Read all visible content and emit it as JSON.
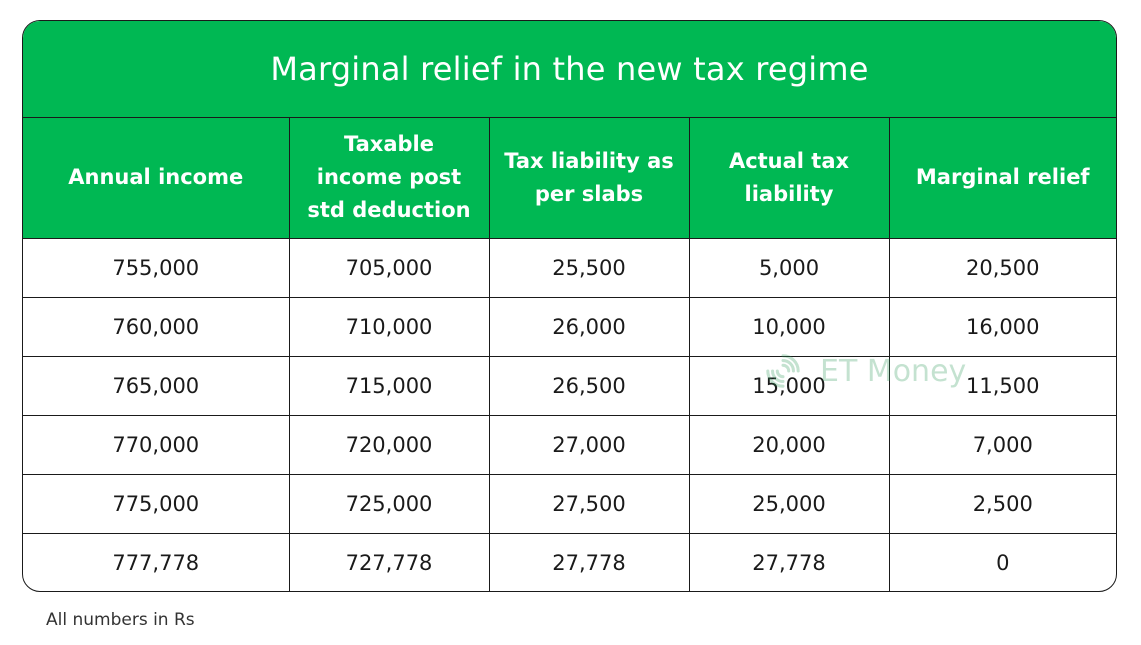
{
  "title": "Marginal relief in the new tax regime",
  "columns": [
    "Annual income",
    "Taxable income post std deduction",
    "Tax liability as per slabs",
    "Actual tax liability",
    "Marginal relief"
  ],
  "rows": [
    [
      "755,000",
      "705,000",
      "25,500",
      "5,000",
      "20,500"
    ],
    [
      "760,000",
      "710,000",
      "26,000",
      "10,000",
      "16,000"
    ],
    [
      "765,000",
      "715,000",
      "26,500",
      "15,000",
      "11,500"
    ],
    [
      "770,000",
      "720,000",
      "27,000",
      "20,000",
      "7,000"
    ],
    [
      "775,000",
      "725,000",
      "27,500",
      "25,000",
      "2,500"
    ],
    [
      "777,778",
      "727,778",
      "27,778",
      "27,778",
      "0"
    ]
  ],
  "watermark": {
    "text": "ET Money",
    "icon": "et-money-logo-icon"
  },
  "footnote": "All numbers in Rs",
  "colors": {
    "header_green": "#00b853",
    "border": "#1a1a1a"
  }
}
